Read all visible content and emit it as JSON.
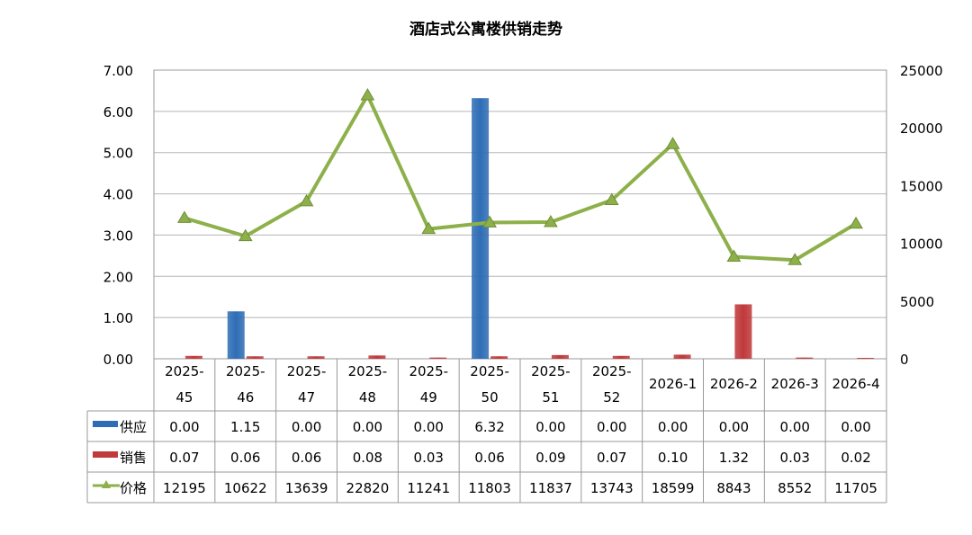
{
  "chart_data": {
    "type": "bar",
    "title": "酒店式公寓楼供销走势",
    "categories": [
      [
        "2025-",
        "45"
      ],
      [
        "2025-",
        "46"
      ],
      [
        "2025-",
        "47"
      ],
      [
        "2025-",
        "48"
      ],
      [
        "2025-",
        "49"
      ],
      [
        "2025-",
        "50"
      ],
      [
        "2025-",
        "51"
      ],
      [
        "2025-",
        "52"
      ],
      [
        "2026-1"
      ],
      [
        "2026-2"
      ],
      [
        "2026-3"
      ],
      [
        "2026-4"
      ]
    ],
    "left_axis": {
      "ticks": [
        "0.00",
        "1.00",
        "2.00",
        "3.00",
        "4.00",
        "5.00",
        "6.00",
        "7.00"
      ],
      "ylim": [
        0,
        7
      ]
    },
    "right_axis": {
      "ticks": [
        "0",
        "5000",
        "10000",
        "15000",
        "20000",
        "25000"
      ],
      "ylim": [
        0,
        25000
      ]
    },
    "series": [
      {
        "name": "供应",
        "kind": "bar",
        "axis": "left",
        "color": "#2e6db5",
        "values": [
          0,
          1.15,
          0,
          0,
          0,
          6.32,
          0,
          0,
          0,
          0,
          0,
          0
        ],
        "labels": [
          "0.00",
          "1.15",
          "0.00",
          "0.00",
          "0.00",
          "6.32",
          "0.00",
          "0.00",
          "0.00",
          "0.00",
          "0.00",
          "0.00"
        ]
      },
      {
        "name": "销售",
        "kind": "bar",
        "axis": "left",
        "color": "#c0393b",
        "values": [
          0.07,
          0.06,
          0.06,
          0.08,
          0.03,
          0.06,
          0.09,
          0.07,
          0.1,
          1.32,
          0.03,
          0.02
        ],
        "labels": [
          "0.07",
          "0.06",
          "0.06",
          "0.08",
          "0.03",
          "0.06",
          "0.09",
          "0.07",
          "0.10",
          "1.32",
          "0.03",
          "0.02"
        ]
      },
      {
        "name": "价格",
        "kind": "line",
        "axis": "right",
        "color": "#8db04a",
        "values": [
          12195,
          10622,
          13639,
          22820,
          11241,
          11803,
          11837,
          13743,
          18599,
          8843,
          8552,
          11705
        ],
        "labels": [
          "12195",
          "10622",
          "13639",
          "22820",
          "11241",
          "11803",
          "11837",
          "13743",
          "18599",
          "8843",
          "8552",
          "11705"
        ]
      }
    ],
    "grid": true,
    "legend": "data-table"
  }
}
